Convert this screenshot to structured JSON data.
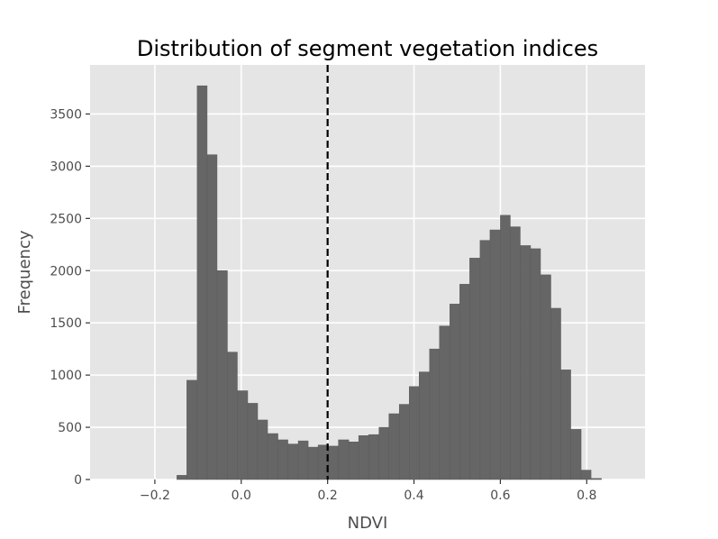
{
  "chart_data": {
    "type": "bar",
    "title": "Distribution of segment vegetation indices",
    "xlabel": "NDVI",
    "ylabel": "Frequency",
    "xlim": [
      -0.35,
      0.935
    ],
    "ylim": [
      0,
      3970
    ],
    "x_ticks": [
      -0.2,
      0.0,
      0.2,
      0.4,
      0.6,
      0.8
    ],
    "x_tick_labels": [
      "−0.2",
      "0.0",
      "0.2",
      "0.4",
      "0.6",
      "0.8"
    ],
    "y_ticks": [
      0,
      500,
      1000,
      1500,
      2000,
      2500,
      3000,
      3500
    ],
    "y_tick_labels": [
      "0",
      "500",
      "1000",
      "1500",
      "2000",
      "2500",
      "3000",
      "3500"
    ],
    "grid": true,
    "legend": "none",
    "bin_width": 0.0234,
    "bins": [
      {
        "x0": -0.149,
        "x1": -0.126,
        "value": 40
      },
      {
        "x0": -0.126,
        "x1": -0.102,
        "value": 950
      },
      {
        "x0": -0.102,
        "x1": -0.079,
        "value": 3770
      },
      {
        "x0": -0.079,
        "x1": -0.056,
        "value": 3110
      },
      {
        "x0": -0.056,
        "x1": -0.032,
        "value": 2000
      },
      {
        "x0": -0.032,
        "x1": -0.009,
        "value": 1220
      },
      {
        "x0": -0.009,
        "x1": 0.015,
        "value": 850
      },
      {
        "x0": 0.015,
        "x1": 0.038,
        "value": 730
      },
      {
        "x0": 0.038,
        "x1": 0.061,
        "value": 570
      },
      {
        "x0": 0.061,
        "x1": 0.085,
        "value": 440
      },
      {
        "x0": 0.085,
        "x1": 0.108,
        "value": 380
      },
      {
        "x0": 0.108,
        "x1": 0.132,
        "value": 340
      },
      {
        "x0": 0.132,
        "x1": 0.155,
        "value": 370
      },
      {
        "x0": 0.155,
        "x1": 0.178,
        "value": 310
      },
      {
        "x0": 0.178,
        "x1": 0.202,
        "value": 330
      },
      {
        "x0": 0.202,
        "x1": 0.225,
        "value": 320
      },
      {
        "x0": 0.225,
        "x1": 0.249,
        "value": 380
      },
      {
        "x0": 0.249,
        "x1": 0.272,
        "value": 360
      },
      {
        "x0": 0.272,
        "x1": 0.295,
        "value": 420
      },
      {
        "x0": 0.295,
        "x1": 0.319,
        "value": 430
      },
      {
        "x0": 0.319,
        "x1": 0.342,
        "value": 500
      },
      {
        "x0": 0.342,
        "x1": 0.366,
        "value": 630
      },
      {
        "x0": 0.366,
        "x1": 0.389,
        "value": 720
      },
      {
        "x0": 0.389,
        "x1": 0.412,
        "value": 890
      },
      {
        "x0": 0.412,
        "x1": 0.436,
        "value": 1030
      },
      {
        "x0": 0.436,
        "x1": 0.459,
        "value": 1250
      },
      {
        "x0": 0.459,
        "x1": 0.483,
        "value": 1470
      },
      {
        "x0": 0.483,
        "x1": 0.506,
        "value": 1680
      },
      {
        "x0": 0.506,
        "x1": 0.529,
        "value": 1870
      },
      {
        "x0": 0.529,
        "x1": 0.553,
        "value": 2120
      },
      {
        "x0": 0.553,
        "x1": 0.576,
        "value": 2290
      },
      {
        "x0": 0.576,
        "x1": 0.6,
        "value": 2390
      },
      {
        "x0": 0.6,
        "x1": 0.623,
        "value": 2530
      },
      {
        "x0": 0.623,
        "x1": 0.646,
        "value": 2420
      },
      {
        "x0": 0.646,
        "x1": 0.67,
        "value": 2240
      },
      {
        "x0": 0.67,
        "x1": 0.693,
        "value": 2210
      },
      {
        "x0": 0.693,
        "x1": 0.717,
        "value": 1960
      },
      {
        "x0": 0.717,
        "x1": 0.74,
        "value": 1640
      },
      {
        "x0": 0.74,
        "x1": 0.763,
        "value": 1050
      },
      {
        "x0": 0.763,
        "x1": 0.787,
        "value": 480
      },
      {
        "x0": 0.787,
        "x1": 0.81,
        "value": 90
      },
      {
        "x0": 0.81,
        "x1": 0.834,
        "value": 10
      }
    ],
    "vline": {
      "x": 0.2,
      "style": "dashed",
      "color": "#000000"
    },
    "colors": {
      "bar": "#666666",
      "bar_edge": "#5c5c5c",
      "panel_bg": "#e5e5e5",
      "grid": "#ffffff",
      "tick_text": "#4d4d4d",
      "title_text": "#000000"
    }
  }
}
